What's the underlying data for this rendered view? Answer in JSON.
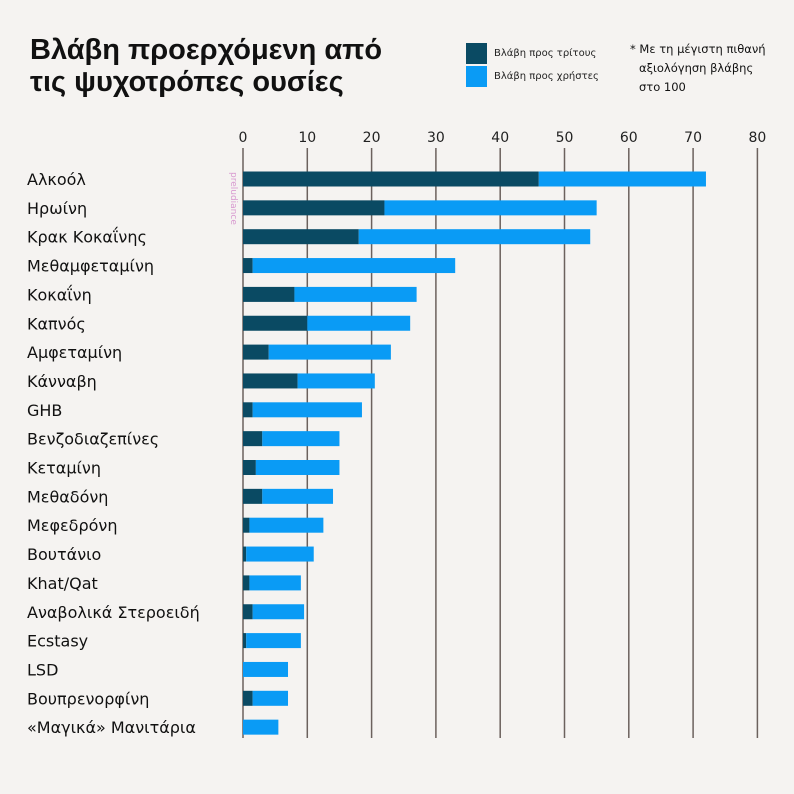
{
  "title_line1": "Βλάβη προερχόμενη από",
  "title_line2": "τις ψυχοτρόπες ουσίες",
  "legend": [
    {
      "label": "Βλάβη προς τρίτους",
      "color": "#0a4a63"
    },
    {
      "label": "Βλάβη προς χρήστες",
      "color": "#0a9bf5"
    }
  ],
  "footnote_lines": [
    "* Με τη μέγιστη πιθανή",
    "αξιολόγηση βλάβης",
    "στο 100"
  ],
  "watermark": "preludiance",
  "chart_data": {
    "type": "bar",
    "orientation": "horizontal",
    "stacked": true,
    "categories": [
      "Αλκοόλ",
      "Ηρωίνη",
      "Κρακ Κοκαΐνης",
      "Μεθαμφεταμίνη",
      "Κοκαΐνη",
      "Καπνός",
      "Αμφεταμίνη",
      "Κάνναβη",
      "GHB",
      "Βενζοδιαζεπίνες",
      "Κεταμίνη",
      "Μεθαδόνη",
      "Μεφεδρόνη",
      "Βουτάνιο",
      "Khat/Qat",
      "Αναβολικά Στεροειδή",
      "Ecstasy",
      "LSD",
      "Βουπρενορφίνη",
      "«Μαγικά» Μανιτάρια"
    ],
    "series": [
      {
        "name": "Βλάβη προς τρίτους",
        "color": "#0a4a63",
        "values": [
          46,
          22,
          18,
          1.5,
          8,
          10,
          4,
          8.5,
          1.5,
          3,
          2,
          3,
          1,
          0.5,
          1,
          1.5,
          0.5,
          0,
          1.5,
          0
        ]
      },
      {
        "name": "Βλάβη προς χρήστες",
        "color": "#0a9bf5",
        "values": [
          26,
          33,
          36,
          31.5,
          19,
          16,
          19,
          12,
          17,
          12,
          13,
          11,
          11.5,
          10.5,
          8,
          8,
          8.5,
          7,
          5.5,
          5.5
        ]
      }
    ],
    "xlim": [
      0,
      80
    ],
    "xticks": [
      0,
      10,
      20,
      30,
      40,
      50,
      60,
      70,
      80
    ],
    "grid": true
  }
}
